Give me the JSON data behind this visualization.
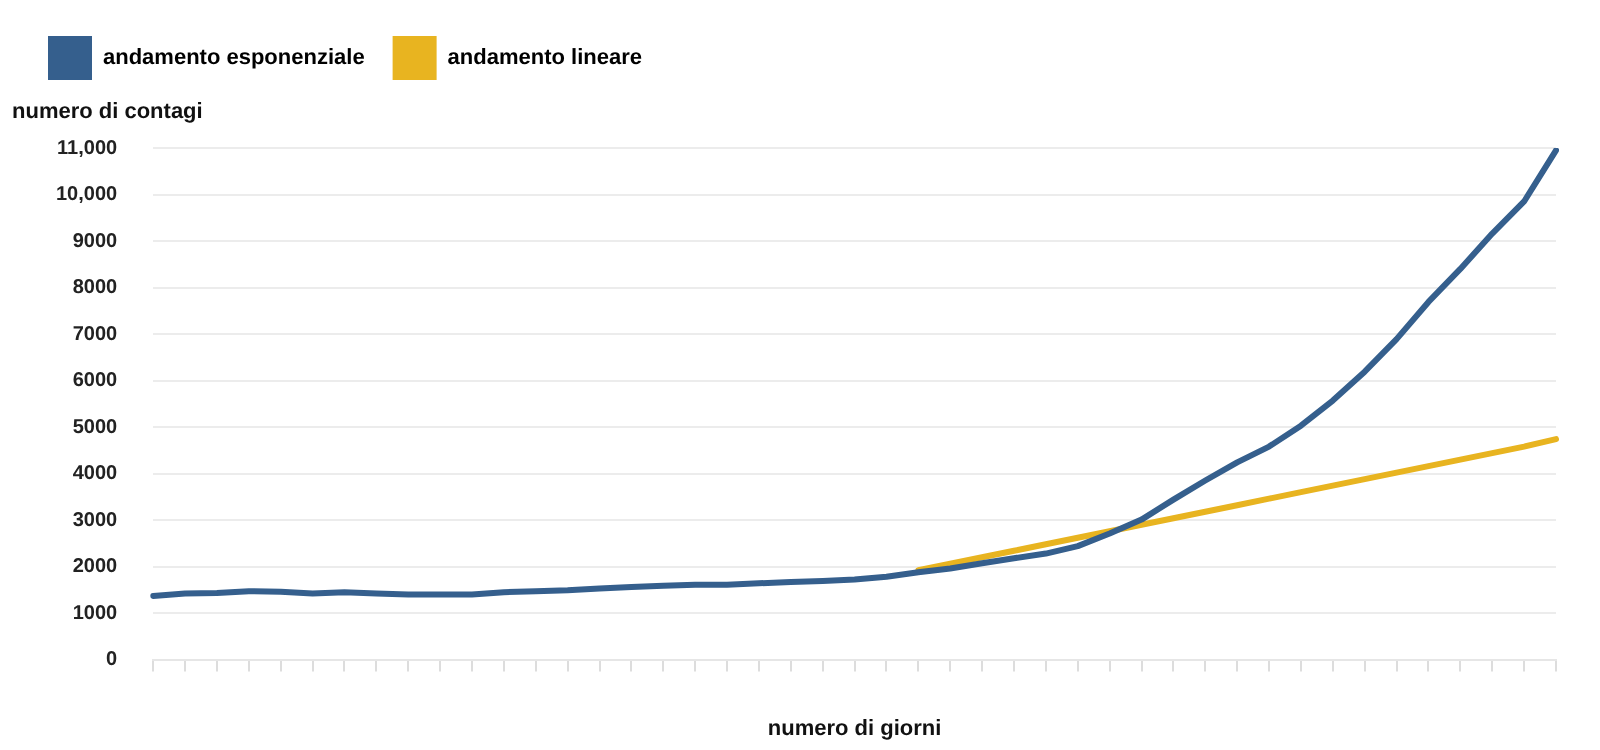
{
  "chart_data": {
    "type": "line",
    "ylabel": "numero di contagi",
    "xlabel": "numero di giorni",
    "categories": [
      null,
      null,
      null,
      null,
      null,
      null,
      null,
      null,
      null,
      null,
      null,
      null,
      null,
      null,
      null,
      null,
      null,
      null,
      null,
      null,
      null,
      null,
      null,
      null,
      null,
      null,
      null,
      null,
      null,
      null,
      null,
      null,
      null,
      null,
      null,
      null,
      null,
      null,
      null,
      null,
      null,
      null,
      null,
      null,
      null
    ],
    "series": [
      {
        "name": "andamento esponenziale",
        "color": "#355f8d",
        "values": [
          1370,
          1420,
          1430,
          1470,
          1460,
          1420,
          1450,
          1420,
          1400,
          1400,
          1400,
          1450,
          1470,
          1490,
          1530,
          1560,
          1590,
          1610,
          1610,
          1640,
          1670,
          1690,
          1720,
          1780,
          1880,
          1960,
          2070,
          2180,
          2280,
          2440,
          2710,
          3010,
          3440,
          3850,
          4240,
          4580,
          5030,
          5570,
          6190,
          6890,
          7690,
          8400,
          9160,
          9850,
          10950
        ]
      },
      {
        "name": "andamento lineare",
        "color": "#e8b420",
        "values": [
          null,
          null,
          null,
          null,
          null,
          null,
          null,
          null,
          null,
          null,
          null,
          null,
          null,
          null,
          null,
          null,
          null,
          null,
          null,
          null,
          null,
          null,
          null,
          null,
          1920,
          2060,
          2200,
          2340,
          2480,
          2620,
          2760,
          2900,
          3040,
          3180,
          3320,
          3460,
          3600,
          3740,
          3880,
          4020,
          4160,
          4300,
          4440,
          4580,
          4740
        ]
      }
    ],
    "ylim": [
      0,
      11000
    ],
    "yticks": [
      0,
      1000,
      2000,
      3000,
      4000,
      5000,
      6000,
      7000,
      8000,
      9000,
      {
        "value": 10000,
        "label": "10,000"
      },
      {
        "value": 11000,
        "label": "11,000"
      }
    ],
    "grid": "y",
    "legend": "top left",
    "marker": "none",
    "line_style": "solid"
  }
}
